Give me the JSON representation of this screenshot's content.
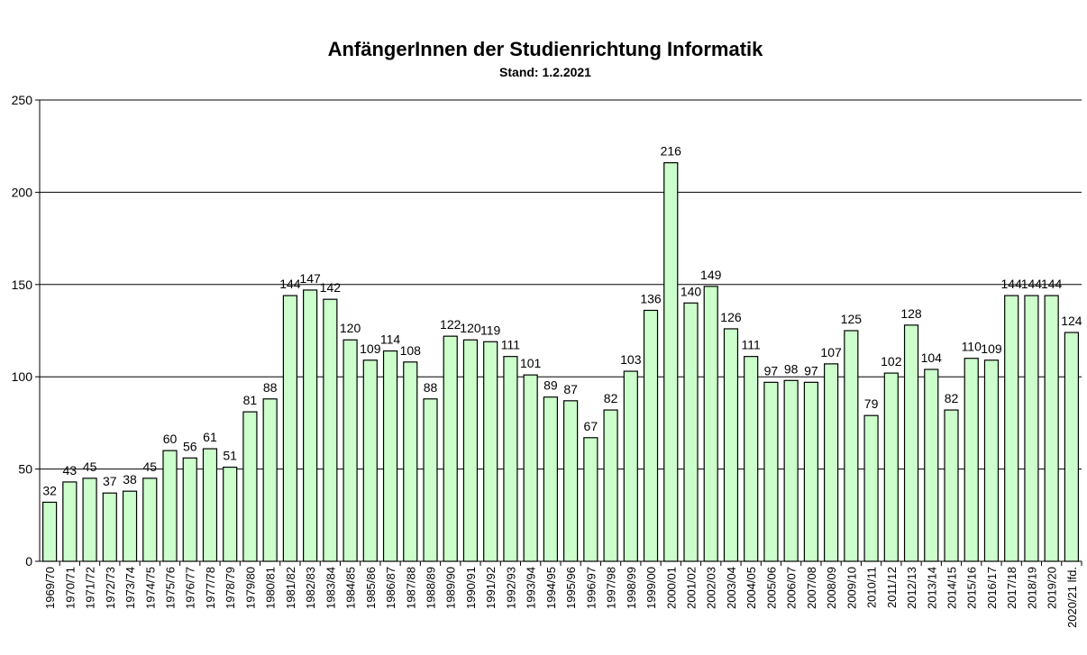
{
  "chart_data": {
    "type": "bar",
    "title": "AnfängerInnen der Studienrichtung Informatik",
    "subtitle": "Stand: 1.2.2021",
    "categories": [
      "1969/70",
      "1970/71",
      "1971/72",
      "1972/73",
      "1973/74",
      "1974/75",
      "1975/76",
      "1976/77",
      "1977/78",
      "1978/79",
      "1979/80",
      "1980/81",
      "1981/82",
      "1982/83",
      "1983/84",
      "1984/85",
      "1985/86",
      "1986/87",
      "1987/88",
      "1988/89",
      "1989/90",
      "1990/91",
      "1991/92",
      "1992/93",
      "1993/94",
      "1994/95",
      "1995/96",
      "1996/97",
      "1997/98",
      "1998/99",
      "1999/00",
      "2000/01",
      "2001/02",
      "2002/03",
      "2003/04",
      "2004/05",
      "2005/06",
      "2006/07",
      "2007/08",
      "2008/09",
      "2009/10",
      "2010/11",
      "2011/12",
      "2012/13",
      "2013/14",
      "2014/15",
      "2015/16",
      "2016/17",
      "2017/18",
      "2018/19",
      "2019/20",
      "2020/21 lfd."
    ],
    "values": [
      32,
      43,
      45,
      37,
      38,
      45,
      60,
      56,
      61,
      51,
      81,
      88,
      144,
      147,
      142,
      120,
      109,
      114,
      108,
      88,
      122,
      120,
      119,
      111,
      101,
      89,
      87,
      67,
      82,
      103,
      136,
      216,
      140,
      149,
      126,
      111,
      97,
      98,
      97,
      107,
      125,
      79,
      102,
      128,
      104,
      82,
      110,
      109,
      144,
      144,
      144,
      124
    ],
    "yticks": [
      0,
      50,
      100,
      150,
      200,
      250
    ],
    "ylim": [
      0,
      250
    ],
    "xlabel": "",
    "ylabel": "",
    "grid": true,
    "colors": {
      "bar_fill": "#ccffcc",
      "bar_stroke": "#000000",
      "grid": "#000000"
    }
  }
}
